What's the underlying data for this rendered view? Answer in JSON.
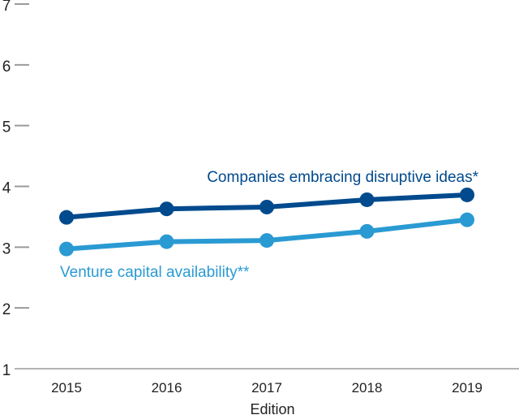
{
  "chart_data": {
    "type": "line",
    "title": "",
    "xlabel": "Edition",
    "ylabel": "",
    "ylim": [
      1,
      7
    ],
    "yticks": [
      1,
      2,
      3,
      4,
      5,
      6,
      7
    ],
    "categories": [
      "2015",
      "2016",
      "2017",
      "2018",
      "2019"
    ],
    "grid": false,
    "legend": "inline labels",
    "series": [
      {
        "name": "Companies embracing disruptive ideas*",
        "color": "#004a8d",
        "values": [
          3.49,
          3.63,
          3.66,
          3.78,
          3.86
        ]
      },
      {
        "name": "Venture capital availability**",
        "color": "#2a9ad3",
        "values": [
          2.97,
          3.09,
          3.11,
          3.26,
          3.45
        ]
      }
    ]
  }
}
